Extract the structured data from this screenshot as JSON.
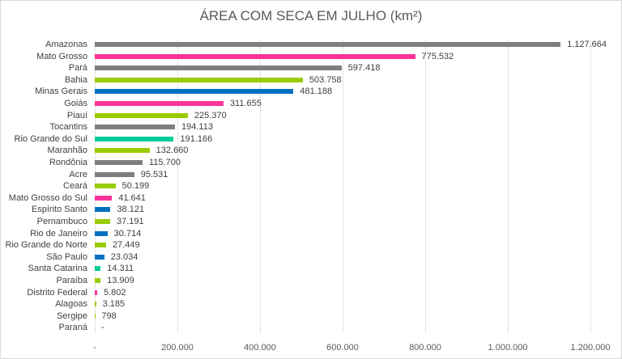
{
  "chart_data": {
    "type": "bar",
    "orientation": "horizontal",
    "title": "ÁREA COM SECA EM JULHO (km²)",
    "xlabel": "",
    "ylabel": "",
    "xlim": [
      0,
      1200000
    ],
    "grid": true,
    "legend": null,
    "x_ticks": [
      "-",
      "200.000",
      "400.000",
      "600.000",
      "800.000",
      "1.000.000",
      "1.200.000"
    ],
    "categories": [
      "Amazonas",
      "Mato Grosso",
      "Pará",
      "Bahia",
      "Minas Gerais",
      "Goiás",
      "Piauí",
      "Tocantins",
      "Rio Grande do Sul",
      "Maranhão",
      "Rondônia",
      "Acre",
      "Ceará",
      "Mato Grosso do Sul",
      "Espírito Santo",
      "Pernambuco",
      "Rio de Janeiro",
      "Rio Grande do Norte",
      "São Paulo",
      "Santa Catarina",
      "Paraíba",
      "Distrito Federal",
      "Alagoas",
      "Sergipe",
      "Paraná"
    ],
    "values": [
      1127664,
      775532,
      597418,
      503758,
      481188,
      311655,
      225370,
      194113,
      191166,
      132660,
      115700,
      95531,
      50199,
      41641,
      38121,
      37191,
      30714,
      27449,
      23034,
      14311,
      13909,
      5802,
      3185,
      798,
      0
    ],
    "value_labels": [
      "1.127.664",
      "775.532",
      "597.418",
      "503.758",
      "481.188",
      "311.655",
      "225.370",
      "194.113",
      "191.166",
      "132.660",
      "115.700",
      "95.531",
      "50.199",
      "41.641",
      "38.121",
      "37.191",
      "30.714",
      "27.449",
      "23.034",
      "14.311",
      "13.909",
      "5.802",
      "3.185",
      "798",
      "-"
    ],
    "bar_colors": [
      "#7f7f7f",
      "#ff3399",
      "#7f7f7f",
      "#99cc00",
      "#0070c0",
      "#ff3399",
      "#99cc00",
      "#7f7f7f",
      "#00cc99",
      "#99cc00",
      "#7f7f7f",
      "#7f7f7f",
      "#99cc00",
      "#ff3399",
      "#0070c0",
      "#99cc00",
      "#0070c0",
      "#99cc00",
      "#0070c0",
      "#00cc99",
      "#99cc00",
      "#ff3399",
      "#99cc00",
      "#99cc00",
      "#99cc00"
    ]
  }
}
